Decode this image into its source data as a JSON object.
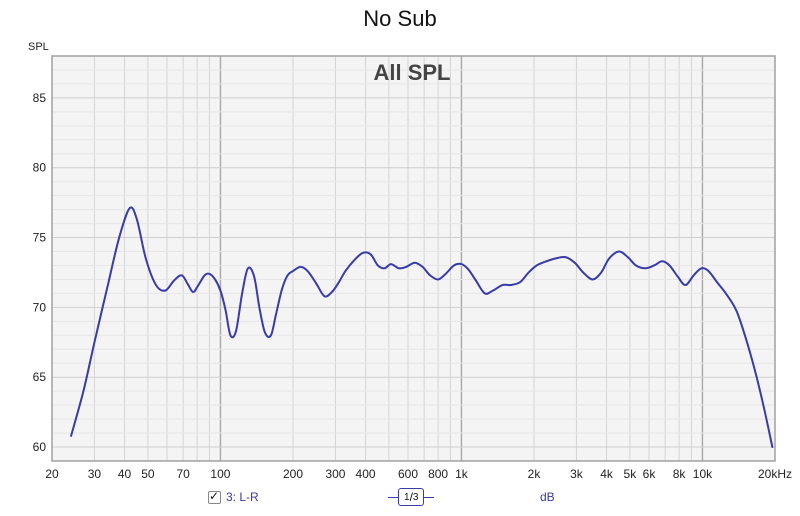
{
  "chart_data": {
    "type": "line",
    "title": "No Sub",
    "subtitle": "All SPL",
    "ylabel": "SPL",
    "xlabel": "",
    "xscale": "log",
    "xlim": [
      20,
      20000
    ],
    "ylim": [
      59,
      88
    ],
    "yticks": [
      60,
      65,
      70,
      75,
      80,
      85
    ],
    "ytick_labels": [
      "60",
      "65",
      "70",
      "75",
      "80",
      "85"
    ],
    "xticks": [
      20,
      30,
      40,
      50,
      70,
      100,
      200,
      300,
      400,
      600,
      800,
      1000,
      2000,
      3000,
      4000,
      5000,
      6000,
      8000,
      10000,
      20000
    ],
    "xtick_labels": [
      "20",
      "30",
      "40",
      "50",
      "70",
      "100",
      "200",
      "300",
      "400",
      "600",
      "800",
      "1k",
      "2k",
      "3k",
      "4k",
      "5k",
      "6k",
      "8k",
      "10k",
      "20kHz"
    ],
    "grid": true,
    "series": [
      {
        "name": "3: L-R",
        "color": "#3a3aa8",
        "x": [
          24,
          27,
          30,
          34,
          38,
          42,
          45,
          49,
          54,
          59,
          64,
          69,
          73,
          77,
          81,
          86,
          90,
          95,
          100,
          105,
          110,
          116,
          123,
          130,
          138,
          145,
          153,
          162,
          170,
          180,
          190,
          200,
          215,
          230,
          250,
          270,
          290,
          310,
          330,
          360,
          390,
          420,
          450,
          480,
          510,
          550,
          590,
          640,
          690,
          740,
          800,
          860,
          930,
          1000,
          1070,
          1150,
          1250,
          1350,
          1480,
          1600,
          1750,
          1900,
          2050,
          2250,
          2450,
          2700,
          2950,
          3200,
          3500,
          3800,
          4100,
          4500,
          4900,
          5300,
          5800,
          6300,
          6800,
          7300,
          7900,
          8500,
          9200,
          9900,
          10600,
          11500,
          12500,
          13800,
          15000,
          16500,
          18000,
          19500
        ],
        "y": [
          60.8,
          64.0,
          67.5,
          71.5,
          75.0,
          77.1,
          76.3,
          73.5,
          71.6,
          71.2,
          71.9,
          72.3,
          71.7,
          71.1,
          71.6,
          72.3,
          72.4,
          72.0,
          71.2,
          69.8,
          68.0,
          68.3,
          71.0,
          72.8,
          72.2,
          70.0,
          68.2,
          68.0,
          69.5,
          71.3,
          72.3,
          72.6,
          72.9,
          72.6,
          71.7,
          70.8,
          71.1,
          71.8,
          72.6,
          73.4,
          73.9,
          73.8,
          73.0,
          72.8,
          73.1,
          72.8,
          72.9,
          73.2,
          72.9,
          72.3,
          72.0,
          72.4,
          73.0,
          73.1,
          72.7,
          71.9,
          71.0,
          71.2,
          71.6,
          71.6,
          71.8,
          72.5,
          73.0,
          73.3,
          73.5,
          73.6,
          73.2,
          72.5,
          72.0,
          72.5,
          73.5,
          74.0,
          73.6,
          73.0,
          72.8,
          73.0,
          73.3,
          73.0,
          72.2,
          71.6,
          72.3,
          72.8,
          72.6,
          71.8,
          71.0,
          69.8,
          68.0,
          65.5,
          62.8,
          60.0
        ]
      }
    ]
  },
  "legend": {
    "series_label": "3: L-R",
    "smoothing_numerator": "1",
    "smoothing_denominator": "3",
    "unit_label": "dB"
  }
}
